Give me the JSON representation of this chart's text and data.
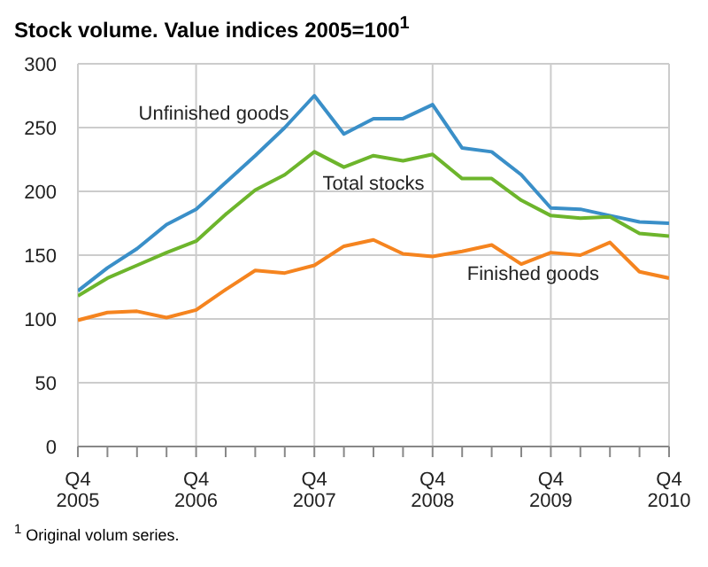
{
  "chart_data": {
    "type": "line",
    "title": "Stock volume. Value indices 2005=100$^{1}$",
    "annotations": [
      "$^{1}$ Original volum series."
    ],
    "categories": [
      "Q4 2005",
      null,
      null,
      null,
      "Q4 2006",
      null,
      null,
      null,
      "Q4 2007",
      null,
      null,
      null,
      "Q4 2008",
      null,
      null,
      null,
      "Q4 2009",
      null,
      null,
      null,
      "Q4 2010"
    ],
    "ylim": [
      0,
      300
    ],
    "yticks": [
      0,
      50,
      100,
      150,
      200,
      250,
      300
    ],
    "grid": true,
    "marker": "none",
    "line_style": "solid",
    "series": [
      {
        "name": "Unfinished goods",
        "color": "#3a8fc8",
        "values": [
          122,
          140,
          155,
          174,
          186,
          207,
          228,
          250,
          275,
          245,
          257,
          257,
          268,
          234,
          231,
          213,
          187,
          186,
          181,
          176,
          175
        ]
      },
      {
        "name": "Total stocks",
        "color": "#6db52c",
        "values": [
          118,
          132,
          142,
          152,
          161,
          182,
          201,
          213,
          231,
          219,
          228,
          224,
          229,
          210,
          210,
          193,
          181,
          179,
          180,
          167,
          165
        ]
      },
      {
        "name": "Finished goods",
        "color": "#f5841f",
        "values": [
          99,
          105,
          106,
          101,
          107,
          123,
          138,
          136,
          142,
          157,
          162,
          151,
          149,
          153,
          158,
          143,
          152,
          150,
          160,
          137,
          132
        ]
      }
    ]
  }
}
